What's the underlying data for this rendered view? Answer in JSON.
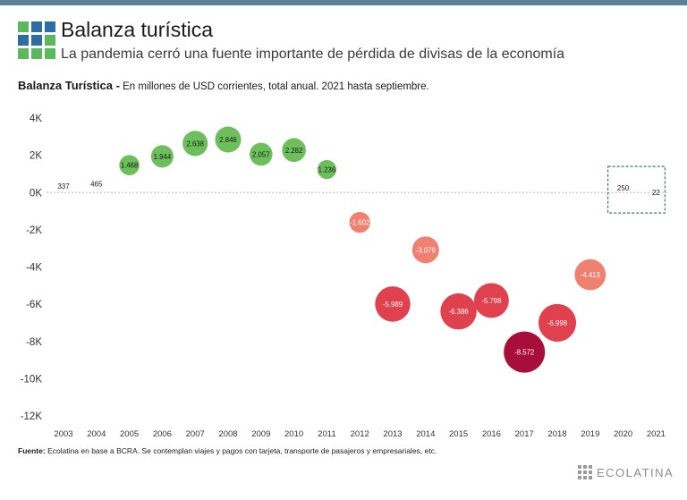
{
  "header": {
    "title": "Balanza turística",
    "subtitle": "La pandemia cerró una fuente importante de pérdida de divisas de la economía"
  },
  "chart_heading": {
    "bold": "Balanza Turística -",
    "detail": " En millones de USD corrientes, total anual. 2021 hasta septiembre."
  },
  "footer": {
    "source_label": "Fuente:",
    "source_text": " Ecolatina en base a BCRA. Se contemplan viajes y pagos con tarjeta, transporte de pasajeros y empresariales, etc.",
    "brand": "ECOLATINA"
  },
  "colors": {
    "positive": "#6cbf5b",
    "negative_light": "#f08070",
    "negative_mid": "#e0414e",
    "negative_dark": "#a80e3a",
    "highlight_box": "#3a6f9a",
    "logo_green": "#5cb85c",
    "logo_blue": "#2e6ca4"
  },
  "chart_data": {
    "type": "scatter",
    "encoding": "bubble",
    "categories": [
      "2003",
      "2004",
      "2005",
      "2006",
      "2007",
      "2008",
      "2009",
      "2010",
      "2011",
      "2012",
      "2013",
      "2014",
      "2015",
      "2016",
      "2017",
      "2018",
      "2019",
      "2020",
      "2021"
    ],
    "values": [
      337,
      465,
      1468,
      1944,
      2638,
      2846,
      2057,
      2282,
      1236,
      -1602,
      -5989,
      -3079,
      -6386,
      -5798,
      -8572,
      -6998,
      -4413,
      250,
      22
    ],
    "data_labels": [
      "337",
      "465",
      "1.468",
      "1.944",
      "2.638",
      "2.846",
      "2.057",
      "2.282",
      "1.236",
      "-1.602",
      "-5.989",
      "-3.079",
      "-6.386",
      "-5.798",
      "-8.572",
      "-6.998",
      "-4.413",
      "250",
      "22"
    ],
    "y_ticks": [
      4000,
      2000,
      0,
      -2000,
      -4000,
      -6000,
      -8000,
      -10000,
      -12000
    ],
    "y_tick_labels": [
      "4K",
      "2K",
      "0K",
      "-2K",
      "-4K",
      "-6K",
      "-8K",
      "-10K",
      "-12K"
    ],
    "ylim": [
      -12000,
      4000
    ],
    "grid": false,
    "zero_line": "dotted",
    "highlight_categories": [
      "2020",
      "2021"
    ]
  }
}
